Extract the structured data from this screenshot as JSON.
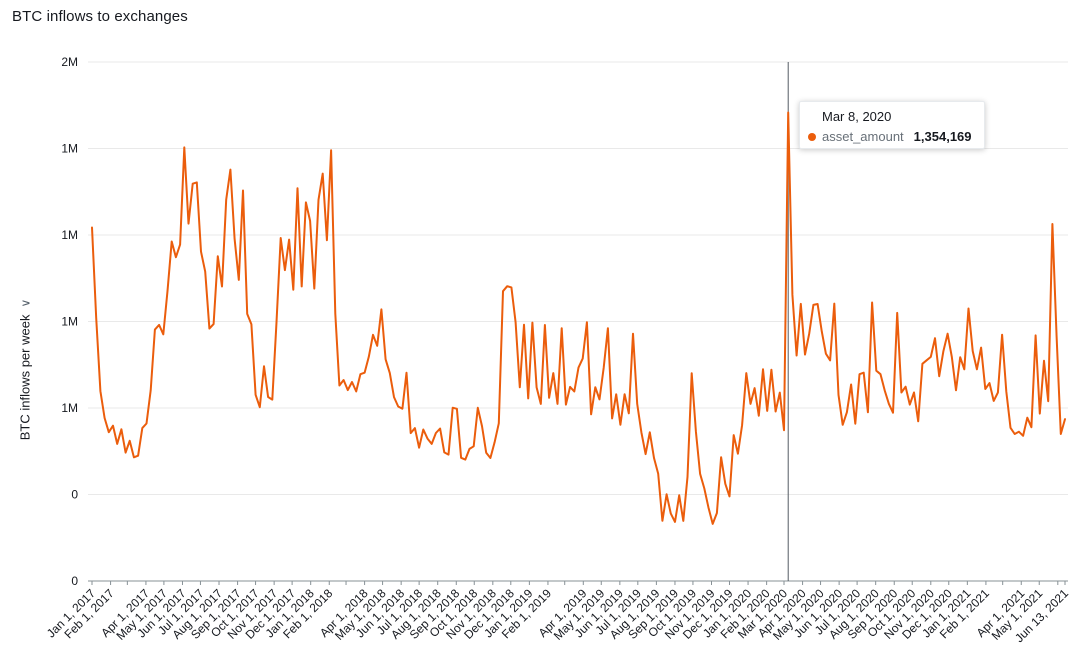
{
  "title": "BTC inflows to exchanges",
  "y_axis": {
    "title": "BTC inflows per week",
    "collapse_icon": "chevron"
  },
  "tooltip": {
    "title": "Mar 8, 2020",
    "series": "asset_amount",
    "value": "1,354,169"
  },
  "colors": {
    "line": "#eb5d0c",
    "grid": "#e9e9e9",
    "axis": "#879196",
    "reference_line": "#545b64",
    "text": "#16191f",
    "muted_text": "#687078",
    "background": "#ffffff"
  },
  "chart_data": {
    "type": "line",
    "title": "BTC inflows to exchanges",
    "xlabel": "",
    "ylabel": "BTC inflows per week",
    "legend": [
      "asset_amount"
    ],
    "legend_position": "none",
    "grid": true,
    "ylim": [
      0,
      1500000
    ],
    "interval_days": 7,
    "total_days": 1624,
    "reference_day": 1162,
    "highlight": {
      "date": "Mar 8, 2020",
      "series": "asset_amount",
      "value": 1354169
    },
    "y_ticks": [
      {
        "value": 1500000,
        "label": "2M"
      },
      {
        "value": 1250000,
        "label": "1M"
      },
      {
        "value": 1000000,
        "label": "1M"
      },
      {
        "value": 750000,
        "label": "1M"
      },
      {
        "value": 500000,
        "label": "1M"
      },
      {
        "value": 250000,
        "label": "0"
      },
      {
        "value": 0,
        "label": "0"
      }
    ],
    "x_ticks": [
      {
        "day": 0,
        "label": "Jan 1, 2017"
      },
      {
        "day": 31,
        "label": "Feb 1, 2017"
      },
      {
        "day": 59,
        "label": ""
      },
      {
        "day": 90,
        "label": "Apr 1, 2017"
      },
      {
        "day": 120,
        "label": "May 1, 2017"
      },
      {
        "day": 151,
        "label": "Jun 1, 2017"
      },
      {
        "day": 181,
        "label": "Jul 1, 2017"
      },
      {
        "day": 212,
        "label": "Aug 1, 2017"
      },
      {
        "day": 243,
        "label": "Sep 1, 2017"
      },
      {
        "day": 273,
        "label": "Oct 1, 2017"
      },
      {
        "day": 304,
        "label": "Nov 1, 2017"
      },
      {
        "day": 334,
        "label": "Dec 1, 2017"
      },
      {
        "day": 365,
        "label": "Jan 1, 2018"
      },
      {
        "day": 396,
        "label": "Feb 1, 2018"
      },
      {
        "day": 424,
        "label": ""
      },
      {
        "day": 455,
        "label": "Apr 1, 2018"
      },
      {
        "day": 485,
        "label": "May 1, 2018"
      },
      {
        "day": 516,
        "label": "Jun 1, 2018"
      },
      {
        "day": 546,
        "label": "Jul 1, 2018"
      },
      {
        "day": 577,
        "label": "Aug 1, 2018"
      },
      {
        "day": 608,
        "label": "Sep 1, 2018"
      },
      {
        "day": 638,
        "label": "Oct 1, 2018"
      },
      {
        "day": 669,
        "label": "Nov 1, 2018"
      },
      {
        "day": 699,
        "label": "Dec 1, 2018"
      },
      {
        "day": 730,
        "label": "Jan 1, 2019"
      },
      {
        "day": 761,
        "label": "Feb 1, 2019"
      },
      {
        "day": 789,
        "label": ""
      },
      {
        "day": 820,
        "label": "Apr 1, 2019"
      },
      {
        "day": 850,
        "label": "May 1, 2019"
      },
      {
        "day": 881,
        "label": "Jun 1, 2019"
      },
      {
        "day": 911,
        "label": "Jul 1, 2019"
      },
      {
        "day": 942,
        "label": "Aug 1, 2019"
      },
      {
        "day": 973,
        "label": "Sep 1, 2019"
      },
      {
        "day": 1003,
        "label": "Oct 1, 2019"
      },
      {
        "day": 1034,
        "label": "Nov 1, 2019"
      },
      {
        "day": 1064,
        "label": "Dec 1, 2019"
      },
      {
        "day": 1095,
        "label": "Jan 1, 2020"
      },
      {
        "day": 1126,
        "label": "Feb 1, 2020"
      },
      {
        "day": 1155,
        "label": "Mar 1, 2020"
      },
      {
        "day": 1186,
        "label": "Apr 1, 2020"
      },
      {
        "day": 1216,
        "label": "May 1, 2020"
      },
      {
        "day": 1247,
        "label": "Jun 1, 2020"
      },
      {
        "day": 1277,
        "label": "Jul 1, 2020"
      },
      {
        "day": 1308,
        "label": "Aug 1, 2020"
      },
      {
        "day": 1339,
        "label": "Sep 1, 2020"
      },
      {
        "day": 1369,
        "label": "Oct 1, 2020"
      },
      {
        "day": 1400,
        "label": "Nov 1, 2020"
      },
      {
        "day": 1430,
        "label": "Dec 1, 2020"
      },
      {
        "day": 1461,
        "label": "Jan 1, 2021"
      },
      {
        "day": 1492,
        "label": "Feb 1, 2021"
      },
      {
        "day": 1520,
        "label": ""
      },
      {
        "day": 1551,
        "label": "Apr 1, 2021"
      },
      {
        "day": 1581,
        "label": "May 1, 2021"
      },
      {
        "day": 1612,
        "label": ""
      },
      {
        "day": 1624,
        "label": "Jun 13, 2021"
      }
    ],
    "series": [
      {
        "name": "asset_amount",
        "start_date": "2017-01-01",
        "interval": "weekly",
        "values": [
          1021554,
          760218,
          548903,
          471205,
          430118,
          448876,
          396221,
          438554,
          371098,
          405332,
          357441,
          362209,
          441870,
          455098,
          551203,
          726554,
          740112,
          712987,
          838112,
          981223,
          935887,
          972110,
          1253209,
          1032887,
          1148226,
          1152090,
          951998,
          894212,
          729887,
          742551,
          938776,
          851209,
          1102334,
          1189008,
          988743,
          870221,
          1128554,
          772098,
          741870,
          538221,
          502187,
          620554,
          531776,
          524221,
          747898,
          991203,
          898554,
          986776,
          841887,
          1135209,
          851554,
          1094112,
          1040887,
          845221,
          1101776,
          1177554,
          984898,
          1244776,
          772334,
          564887,
          580998,
          551770,
          575092,
          547884,
          597665,
          601887,
          648112,
          711554,
          679776,
          784990,
          640887,
          600912,
          531554,
          504221,
          497876,
          601772,
          427554,
          441898,
          385209,
          437776,
          411554,
          396112,
          427887,
          440776,
          371554,
          365221,
          500887,
          497554,
          356112,
          350776,
          381887,
          389221,
          500554,
          447776,
          370898,
          355554,
          400887,
          455776,
          837554,
          851887,
          848554,
          747776,
          559887,
          740554,
          527776,
          746887,
          559554,
          511776,
          739887,
          529554,
          600776,
          511887,
          730554,
          509776,
          560887,
          547554,
          616776,
          642887,
          747554,
          481776,
          560221,
          524887,
          616554,
          730776,
          469887,
          539554,
          451776,
          539887,
          484554,
          714776,
          511887,
          429554,
          366776,
          429887,
          355554,
          309776,
          173887,
          250554,
          194776,
          170887,
          247554,
          173776,
          300887,
          600554,
          431776,
          309887,
          267554,
          211776,
          164887,
          196554,
          357776,
          280887,
          244554,
          421776,
          367887,
          450554,
          600776,
          511887,
          557554,
          477776,
          611887,
          491554,
          610776,
          489887,
          544554,
          435776,
          1354169,
          827554,
          651776,
          800887,
          654554,
          714776,
          797887,
          800554,
          720776,
          656887,
          637554,
          801776,
          537887,
          451554,
          487776,
          567887,
          454554,
          597776,
          601887,
          487554,
          804776,
          607887,
          597554,
          550776,
          511887,
          486554,
          774776,
          544887,
          561554,
          509776,
          544887,
          461554,
          627776,
          637887,
          647554,
          701776,
          591887,
          664554,
          714776,
          647887,
          551554,
          646776,
          611887,
          787554,
          664776,
          611887,
          674554,
          554776,
          571887,
          520554,
          544776,
          711887,
          547554,
          442776,
          424887,
          431554,
          419776,
          471887,
          444554,
          709776,
          483887,
          636554,
          519776,
          1031887,
          706554,
          424776,
          467887
        ]
      }
    ]
  }
}
